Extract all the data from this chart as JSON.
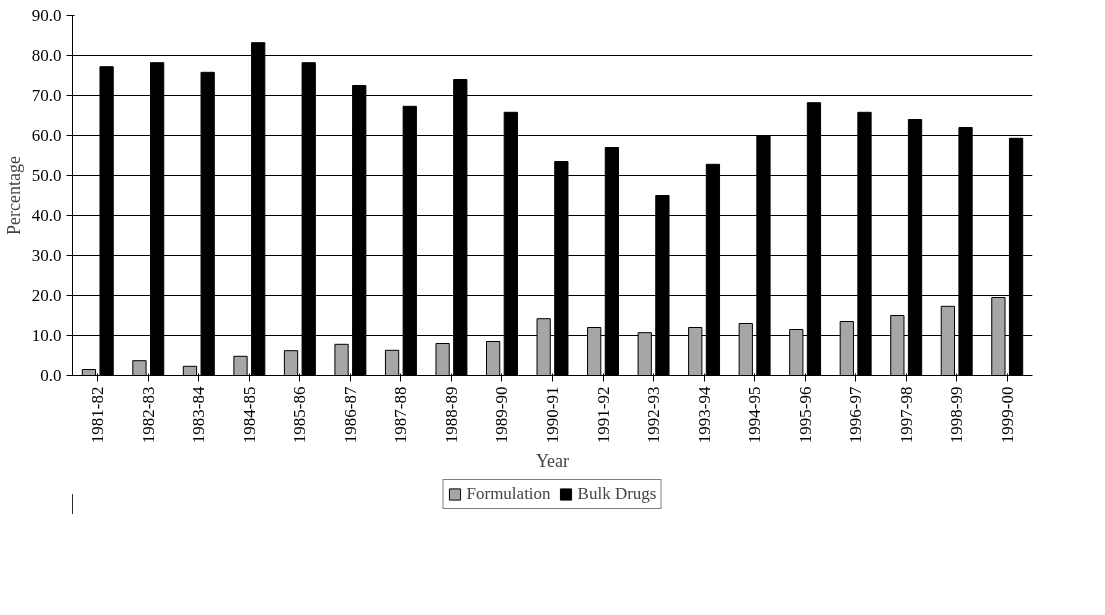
{
  "chart_data": {
    "type": "bar",
    "xlabel": "Year",
    "ylabel": "Percentage",
    "categories": [
      "1981-82",
      "1982-83",
      "1983-84",
      "1984-85",
      "1985-86",
      "1986-87",
      "1987-88",
      "1988-89",
      "1989-90",
      "1990-91",
      "1991-92",
      "1992-93",
      "1993-94",
      "1994-95",
      "1995-96",
      "1996-97",
      "1997-98",
      "1998-99",
      "1999-00"
    ],
    "series": [
      {
        "name": "Formulation",
        "color": "#a6a6a6",
        "values": [
          1.5,
          3.7,
          2.3,
          4.8,
          6.2,
          7.8,
          6.3,
          8.0,
          8.5,
          14.2,
          12.0,
          10.7,
          12.0,
          13.0,
          11.5,
          13.5,
          15.0,
          17.3,
          19.5
        ]
      },
      {
        "name": "Bulk Drugs",
        "color": "#000000",
        "values": [
          77.2,
          78.2,
          75.8,
          83.2,
          78.2,
          72.5,
          67.3,
          74.0,
          65.8,
          53.5,
          57.0,
          45.0,
          52.8,
          60.0,
          68.2,
          65.8,
          64.0,
          62.0,
          59.3
        ]
      }
    ],
    "ylim": [
      0,
      90
    ],
    "yticks": [
      {
        "value": 0,
        "label": "0.0"
      },
      {
        "value": 10,
        "label": "10.0"
      },
      {
        "value": 20,
        "label": "20.0"
      },
      {
        "value": 30,
        "label": "30.0"
      },
      {
        "value": 40,
        "label": "40.0"
      },
      {
        "value": 50,
        "label": "50.0"
      },
      {
        "value": 60,
        "label": "60.0"
      },
      {
        "value": 70,
        "label": "70.0"
      },
      {
        "value": 80,
        "label": "80.0"
      },
      {
        "value": 90,
        "label": "90.0"
      }
    ],
    "grid": "y",
    "legend": "bottom"
  }
}
